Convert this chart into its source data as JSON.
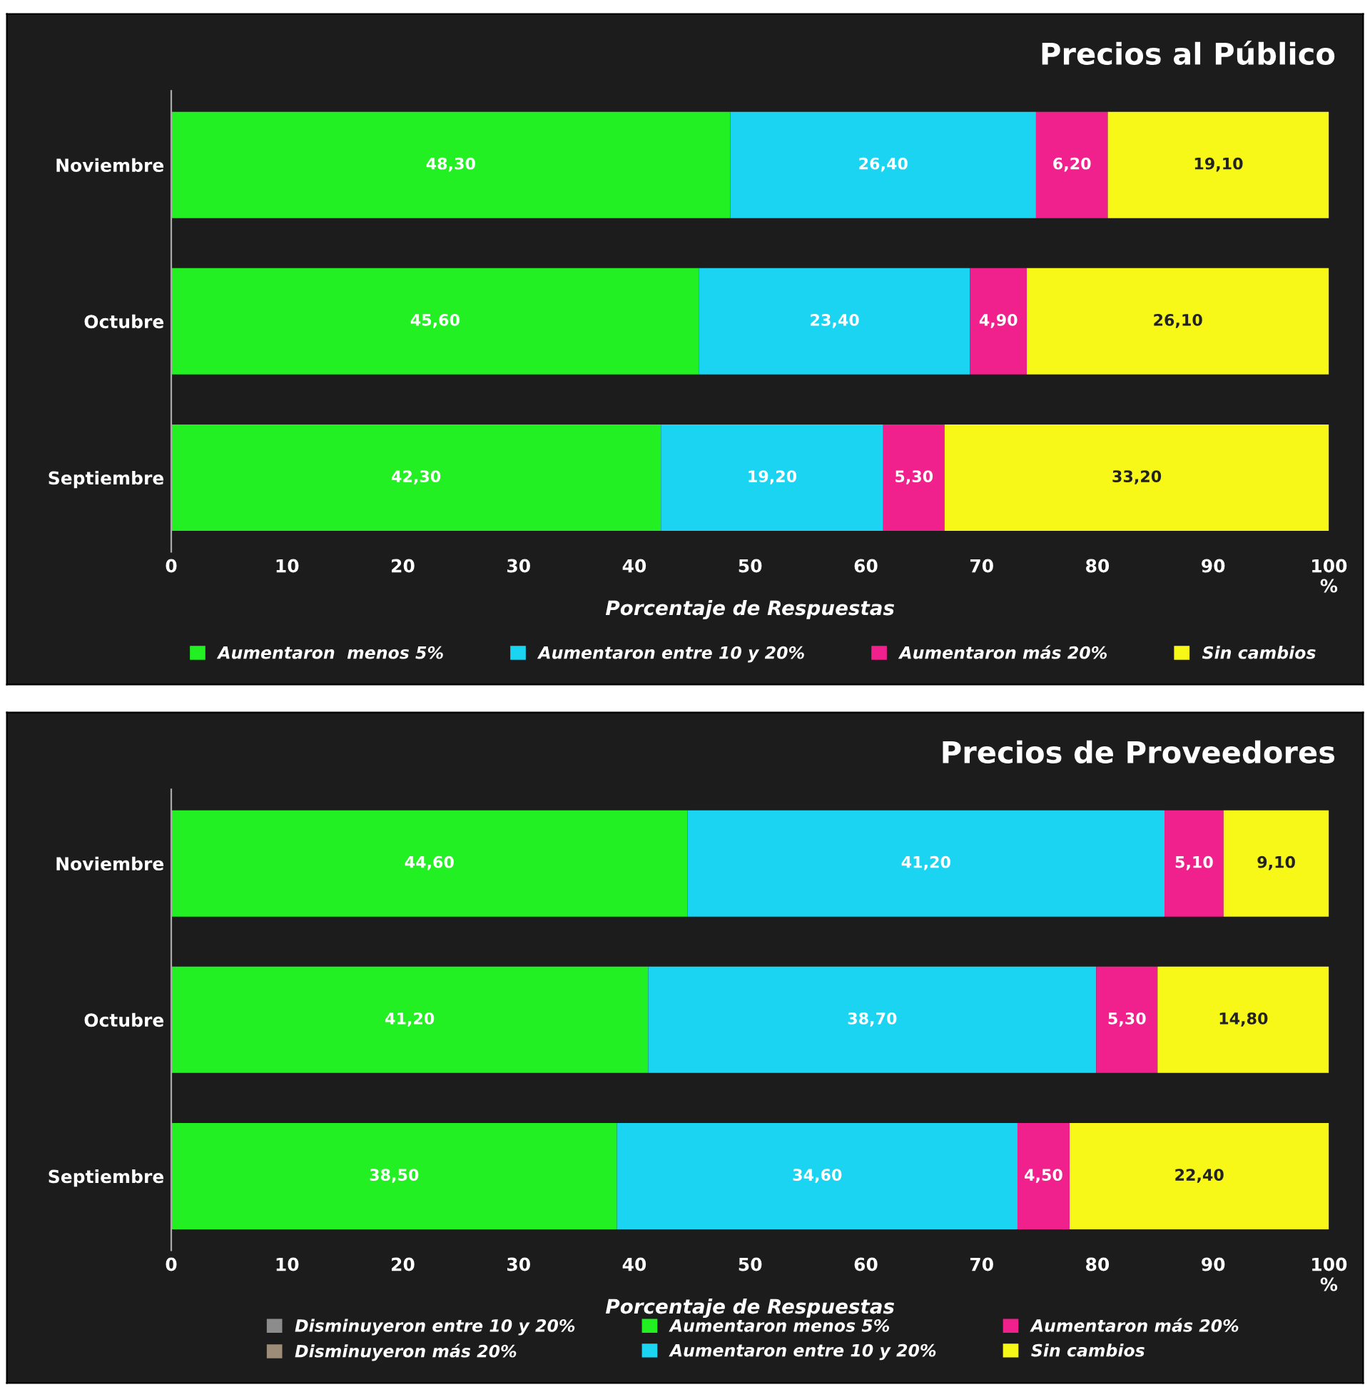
{
  "chart_data": [
    {
      "type": "bar",
      "orientation": "horizontal",
      "stacked": true,
      "title": "Precios al Público",
      "xlabel": "Porcentaje de Respuestas",
      "categories": [
        "Noviembre",
        "Octubre",
        "Septiembre"
      ],
      "xlim": [
        0,
        100
      ],
      "xticks": [
        0,
        10,
        20,
        30,
        40,
        50,
        60,
        70,
        80,
        90,
        {
          "value": 100,
          "label": "100\n%"
        }
      ],
      "grid": false,
      "legend": "bottom",
      "series": [
        {
          "name": "Aumentaron  menos 5%",
          "color": "#22f022",
          "values": [
            48.3,
            45.6,
            42.3
          ],
          "value_labels": [
            "48,30",
            "45,60",
            "42,30"
          ]
        },
        {
          "name": "Aumentaron entre 10 y 20%",
          "color": "#1ad4f2",
          "values": [
            26.4,
            23.4,
            19.2
          ],
          "value_labels": [
            "26,40",
            "23,40",
            "19,20"
          ]
        },
        {
          "name": "Aumentaron más 20%",
          "color": "#f0208c",
          "values": [
            6.2,
            4.9,
            5.3
          ],
          "value_labels": [
            "6,20",
            "4,90",
            "5,30"
          ]
        },
        {
          "name": "Sin cambios",
          "color": "#f8f818",
          "values": [
            19.1,
            26.1,
            33.2
          ],
          "value_labels": [
            "19,10",
            "26,10",
            "33,20"
          ]
        }
      ]
    },
    {
      "type": "bar",
      "orientation": "horizontal",
      "stacked": true,
      "title": "Precios de Proveedores",
      "xlabel": "Porcentaje de Respuestas",
      "categories": [
        "Noviembre",
        "Octubre",
        "Septiembre"
      ],
      "xlim": [
        0,
        100
      ],
      "xticks": [
        0,
        10,
        20,
        30,
        40,
        50,
        60,
        70,
        80,
        90,
        {
          "value": 100,
          "label": "100\n%"
        }
      ],
      "grid": false,
      "legend": "bottom",
      "series": [
        {
          "name": "Disminuyeron entre 10 y 20%",
          "color": "#8c8c8c",
          "values": [
            null,
            null,
            null
          ]
        },
        {
          "name": "Disminuyeron más 20%",
          "color": "#9c8c78",
          "values": [
            null,
            null,
            null
          ]
        },
        {
          "name": "Aumentaron menos 5%",
          "color": "#22f022",
          "values": [
            44.6,
            41.2,
            38.5
          ],
          "value_labels": [
            "44,60",
            "41,20",
            "38,50"
          ]
        },
        {
          "name": "Aumentaron entre 10 y 20%",
          "color": "#1ad4f2",
          "values": [
            41.2,
            38.7,
            34.6
          ],
          "value_labels": [
            "41,20",
            "38,70",
            "34,60"
          ]
        },
        {
          "name": "Aumentaron más 20%",
          "color": "#f0208c",
          "values": [
            5.1,
            5.3,
            4.5
          ],
          "value_labels": [
            "5,10",
            "5,30",
            "4,50"
          ]
        },
        {
          "name": "Sin cambios",
          "color": "#f8f818",
          "values": [
            9.1,
            14.8,
            22.4
          ],
          "value_labels": [
            "9,10",
            "14,80",
            "22,40"
          ]
        }
      ]
    }
  ]
}
